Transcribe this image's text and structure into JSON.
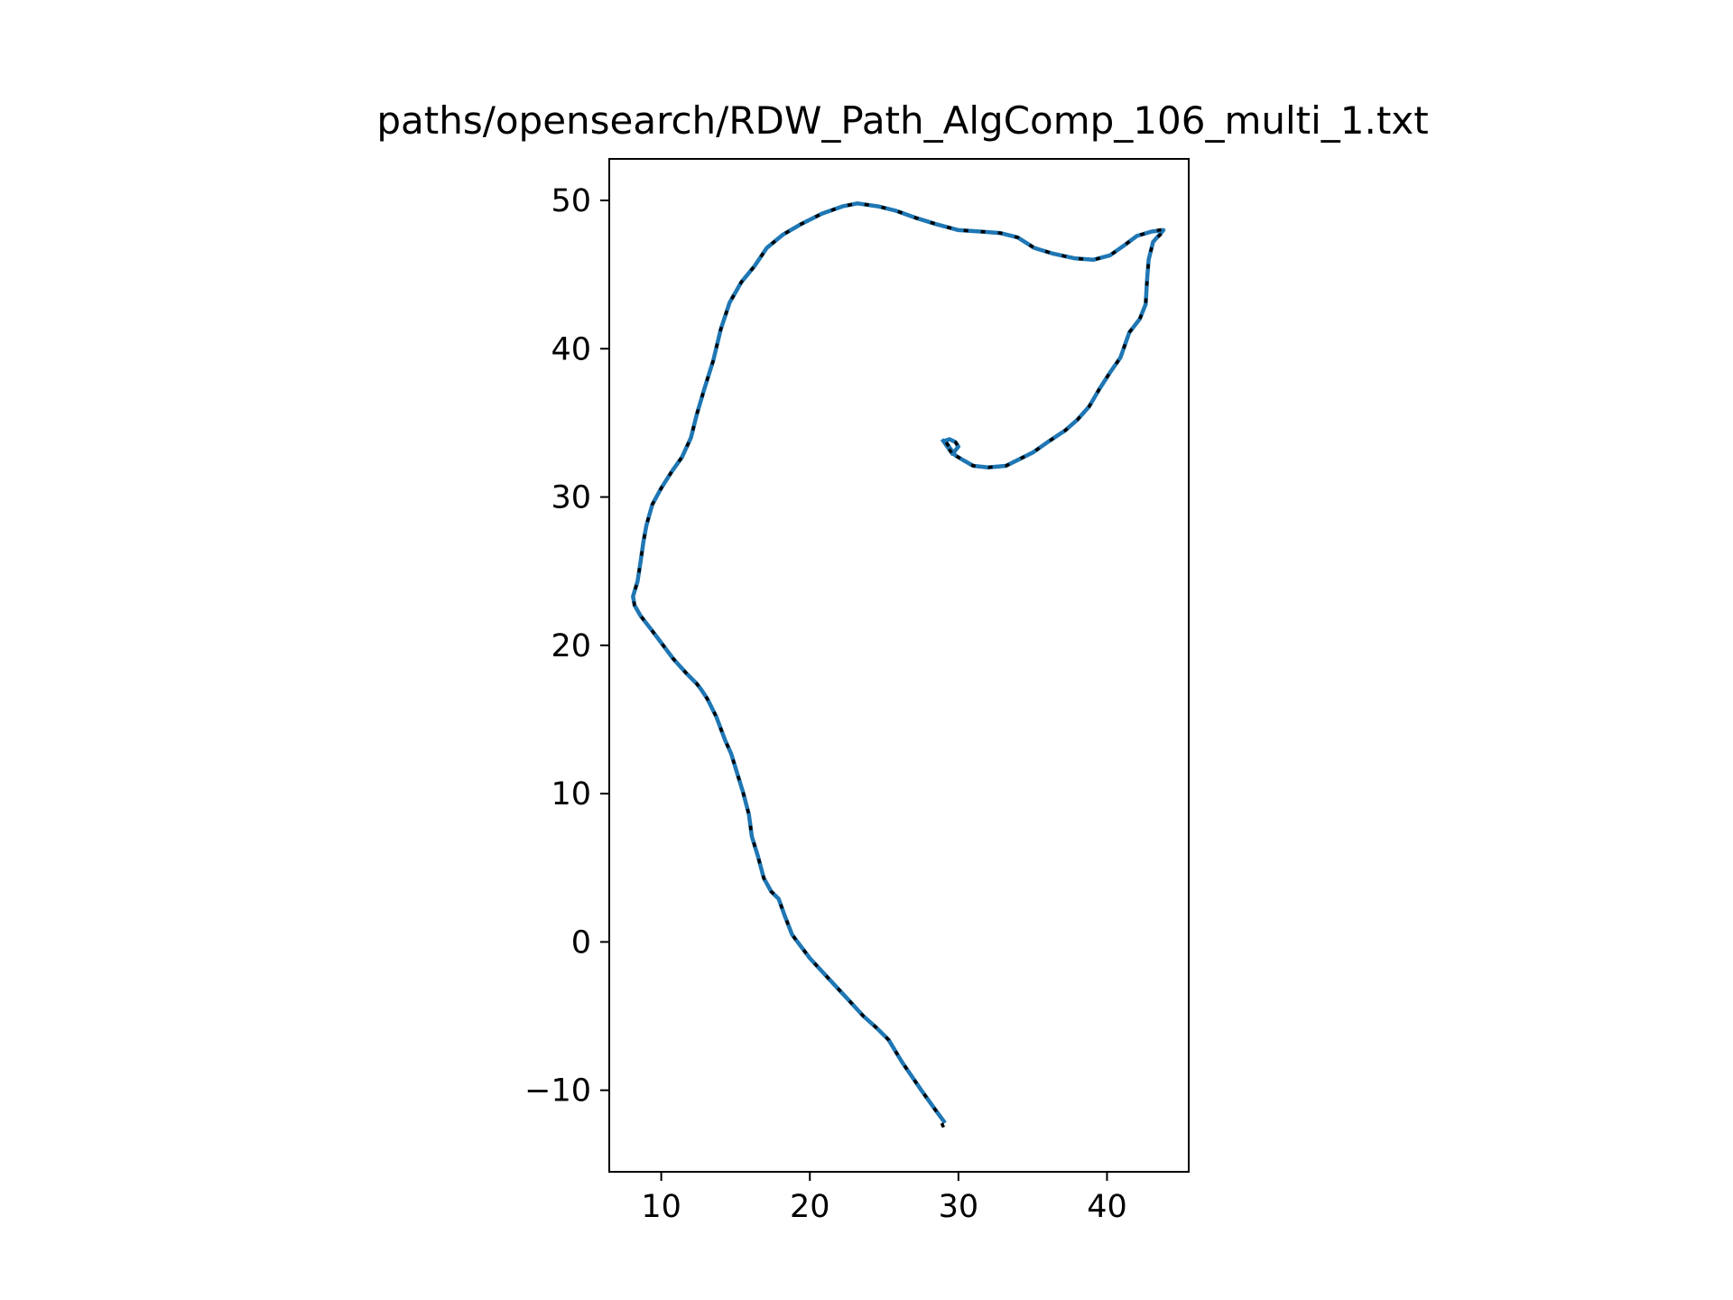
{
  "chart_data": {
    "type": "line",
    "title": "paths/opensearch/RDW_Path_AlgComp_106_multi_1.txt",
    "xlabel": "",
    "ylabel": "",
    "xlim": [
      6.5,
      45.5
    ],
    "ylim": [
      -15.5,
      52.8
    ],
    "xticks": [
      10,
      20,
      30,
      40
    ],
    "yticks": [
      -10,
      0,
      10,
      20,
      30,
      40,
      50
    ],
    "xtick_labels": [
      "10",
      "20",
      "30",
      "40"
    ],
    "ytick_labels": [
      "−10",
      "0",
      "10",
      "20",
      "30",
      "40",
      "50"
    ],
    "grid": false,
    "legend": "none",
    "series": [
      {
        "color": "#1f77b4",
        "style": "solid",
        "x": [
          29.1,
          28.5,
          27.5,
          26.2,
          25.3,
          24.5,
          23.6,
          22.5,
          21.2,
          20.0,
          18.8,
          18.3,
          17.9,
          17.4,
          16.9,
          16.5,
          16.1,
          15.9,
          15.5,
          15.1,
          14.7,
          14.3,
          13.7,
          13.1,
          12.7,
          12.4,
          11.7,
          10.8,
          9.9,
          9.3,
          8.6,
          8.2,
          8.1,
          8.4,
          8.6,
          8.8,
          9.0,
          9.4,
          10.0,
          10.7,
          11.4,
          12.0,
          12.4,
          12.9,
          13.5,
          14.0,
          14.6,
          15.4,
          16.3,
          17.1,
          18.2,
          19.4,
          20.8,
          22.2,
          23.2,
          24.6,
          25.8,
          27.2,
          28.5,
          30.0,
          31.5,
          32.8,
          34.0,
          35.1,
          36.4,
          37.8,
          39.1,
          40.2,
          41.2,
          42.0,
          43.0,
          43.8,
          43.1,
          42.8,
          42.7,
          42.6,
          42.2,
          41.5,
          40.9,
          40.2,
          39.5,
          38.8,
          38.0,
          37.2,
          36.0,
          35.0,
          34.2,
          33.2,
          32.0,
          31.0,
          30.3,
          29.8,
          29.5,
          29.1,
          29.4,
          29.8,
          30.0,
          29.6,
          28.9
        ],
        "y": [
          -12.2,
          -11.4,
          -10.0,
          -8.1,
          -6.6,
          -5.8,
          -5.0,
          -3.8,
          -2.4,
          -1.1,
          0.5,
          1.8,
          2.9,
          3.4,
          4.3,
          5.8,
          7.1,
          8.6,
          10.1,
          11.4,
          12.7,
          13.6,
          15.2,
          16.4,
          17.0,
          17.4,
          18.1,
          19.1,
          20.3,
          21.1,
          22.0,
          22.7,
          23.3,
          24.3,
          25.6,
          27.0,
          28.1,
          29.5,
          30.6,
          31.7,
          32.7,
          34.0,
          35.6,
          37.3,
          39.2,
          41.3,
          43.1,
          44.5,
          45.6,
          46.8,
          47.7,
          48.4,
          49.1,
          49.6,
          49.8,
          49.6,
          49.3,
          48.8,
          48.4,
          48.0,
          47.9,
          47.8,
          47.5,
          46.8,
          46.4,
          46.1,
          46.0,
          46.3,
          47.0,
          47.6,
          47.9,
          48.0,
          47.2,
          46.0,
          44.7,
          43.0,
          42.0,
          41.1,
          39.4,
          38.4,
          37.3,
          36.1,
          35.2,
          34.5,
          33.7,
          33.0,
          32.6,
          32.1,
          32.0,
          32.1,
          32.5,
          32.8,
          33.2,
          33.8,
          33.9,
          33.7,
          33.4,
          32.9,
          33.9
        ]
      },
      {
        "color": "#000000",
        "style": "dashed",
        "x": [
          29.0,
          28.5,
          27.5,
          26.2,
          25.3,
          24.5,
          23.6,
          22.5,
          21.2,
          20.0,
          18.8,
          18.3,
          17.9,
          17.4,
          16.9,
          16.5,
          16.1,
          15.9,
          15.5,
          15.1,
          14.7,
          14.3,
          13.7,
          13.1,
          12.7,
          12.4,
          11.7,
          10.8,
          9.9,
          9.3,
          8.6,
          8.2,
          8.1,
          8.4,
          8.6,
          8.8,
          9.0,
          9.4,
          10.0,
          10.7,
          11.4,
          12.0,
          12.4,
          12.9,
          13.5,
          14.0,
          14.6,
          15.4,
          16.3,
          17.1,
          18.2,
          19.4,
          20.8,
          22.2,
          23.2,
          24.6,
          25.8,
          27.2,
          28.5,
          30.0,
          31.5,
          32.8,
          34.0,
          35.1,
          36.4,
          37.8,
          39.1,
          40.2,
          41.2,
          42.0,
          43.0,
          44.0,
          43.1,
          42.8,
          42.7,
          42.6,
          42.2,
          41.5,
          40.9,
          40.2,
          39.5,
          38.8,
          38.0,
          37.2,
          36.0,
          35.0,
          34.2,
          33.2,
          32.0,
          31.0,
          30.3,
          29.8,
          29.5,
          29.1,
          29.4,
          29.8,
          30.0,
          29.6,
          28.9
        ],
        "y": [
          -12.5,
          -11.4,
          -10.0,
          -8.1,
          -6.6,
          -5.8,
          -5.0,
          -3.8,
          -2.4,
          -1.1,
          0.5,
          1.8,
          2.9,
          3.4,
          4.3,
          5.8,
          7.1,
          8.6,
          10.1,
          11.4,
          12.7,
          13.6,
          15.2,
          16.4,
          17.0,
          17.4,
          18.1,
          19.1,
          20.3,
          21.1,
          22.0,
          22.7,
          23.3,
          24.3,
          25.6,
          27.0,
          28.1,
          29.5,
          30.6,
          31.7,
          32.7,
          34.0,
          35.6,
          37.3,
          39.2,
          41.3,
          43.1,
          44.5,
          45.6,
          46.8,
          47.7,
          48.4,
          49.1,
          49.6,
          49.8,
          49.6,
          49.3,
          48.8,
          48.4,
          48.0,
          47.9,
          47.8,
          47.5,
          46.8,
          46.4,
          46.1,
          46.0,
          46.3,
          47.0,
          47.6,
          47.9,
          48.1,
          47.2,
          46.0,
          44.7,
          43.0,
          42.0,
          41.1,
          39.4,
          38.4,
          37.3,
          36.1,
          35.2,
          34.5,
          33.7,
          33.0,
          32.6,
          32.1,
          32.0,
          32.1,
          32.5,
          32.8,
          33.2,
          33.8,
          33.9,
          33.7,
          33.4,
          32.9,
          33.9
        ]
      }
    ]
  }
}
